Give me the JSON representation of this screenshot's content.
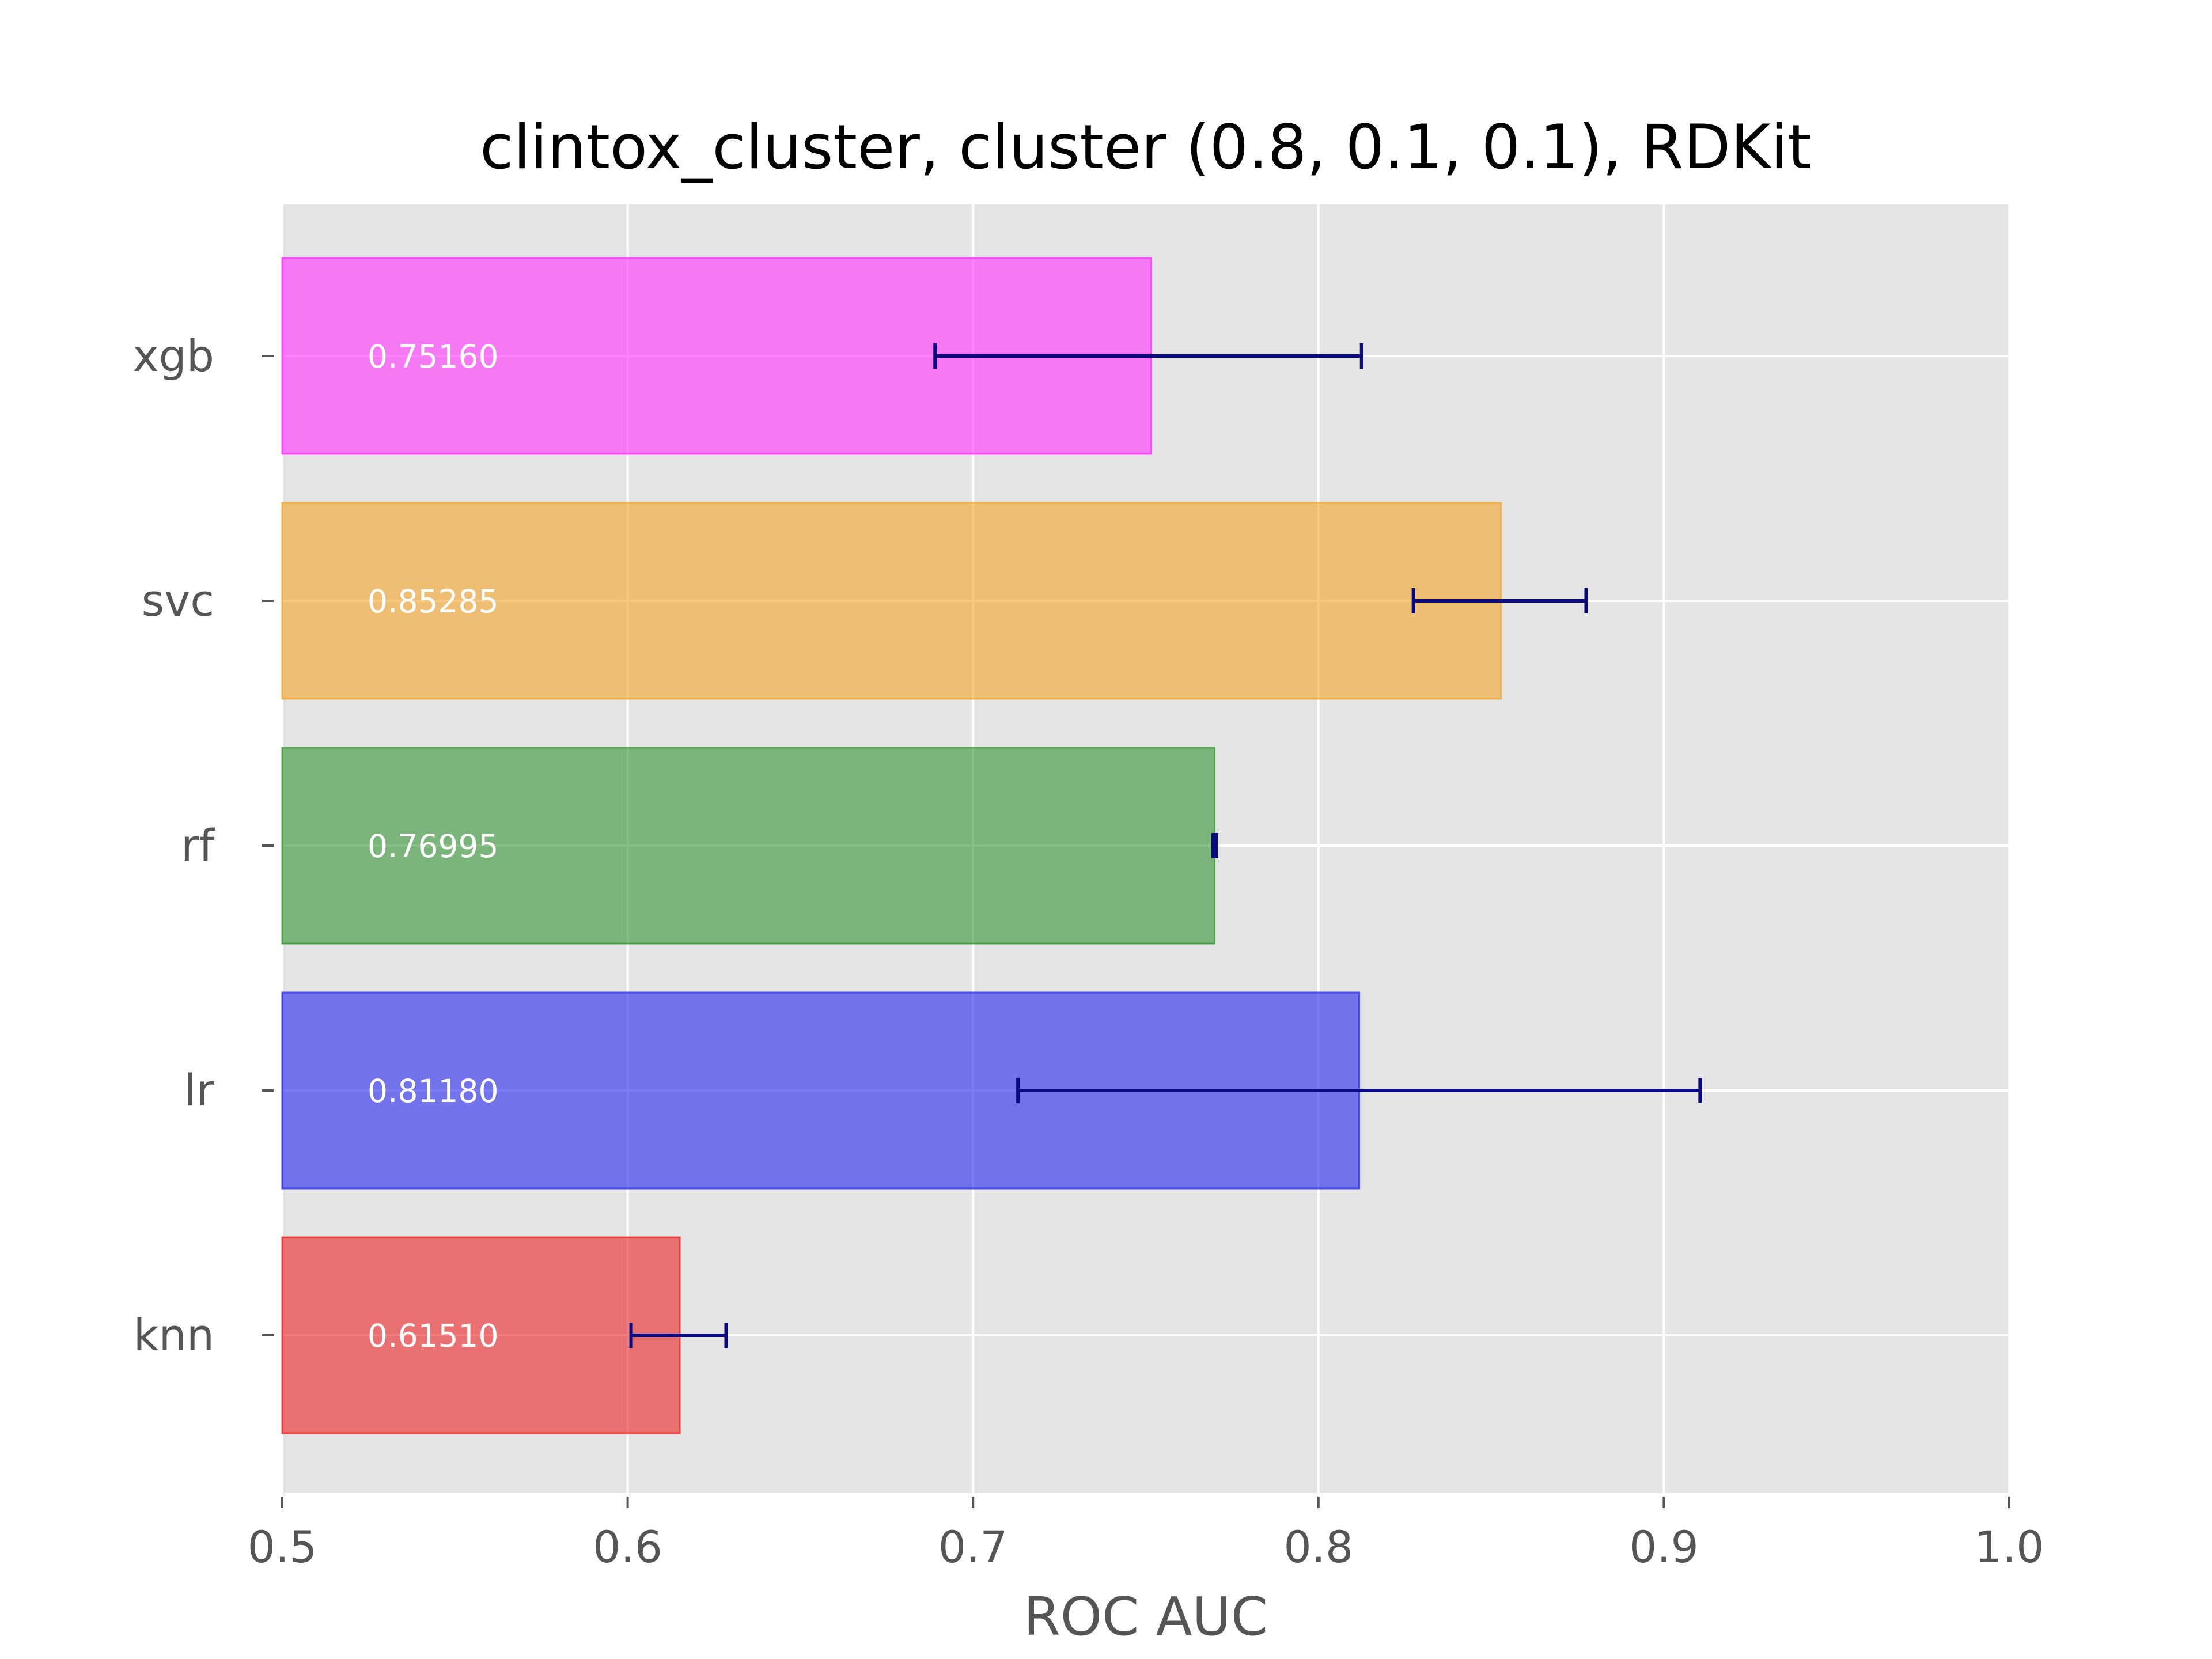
{
  "chart_data": {
    "type": "bar",
    "orientation": "horizontal",
    "title": "clintox_cluster, cluster (0.8, 0.1, 0.1), RDKit",
    "xlabel": "ROC AUC",
    "ylabel": "",
    "xlim": [
      0.5,
      1.0
    ],
    "x_ticks": [
      "0.5",
      "0.6",
      "0.7",
      "0.8",
      "0.9",
      "1.0"
    ],
    "x_tick_values": [
      0.5,
      0.6,
      0.7,
      0.8,
      0.9,
      1.0
    ],
    "grid": true,
    "style": "ggplot",
    "categories": [
      "knn",
      "lr",
      "rf",
      "svc",
      "xgb"
    ],
    "values": [
      0.6151,
      0.8118,
      0.76995,
      0.85285,
      0.7516
    ],
    "value_labels": [
      "0.61510",
      "0.81180",
      "0.76995",
      "0.85285",
      "0.75160"
    ],
    "error_low": [
      0.601,
      0.713,
      0.7695,
      0.8275,
      0.689
    ],
    "error_high": [
      0.6285,
      0.9105,
      0.7705,
      0.8775,
      0.8125
    ],
    "colors": [
      "#ee2a2a",
      "#2b2bee",
      "#3b983b",
      "#f3a62e",
      "#ff36ff"
    ],
    "error_color": "#0a0a80",
    "background_color": "#e5e5e5",
    "grid_color": "#ffffff"
  }
}
